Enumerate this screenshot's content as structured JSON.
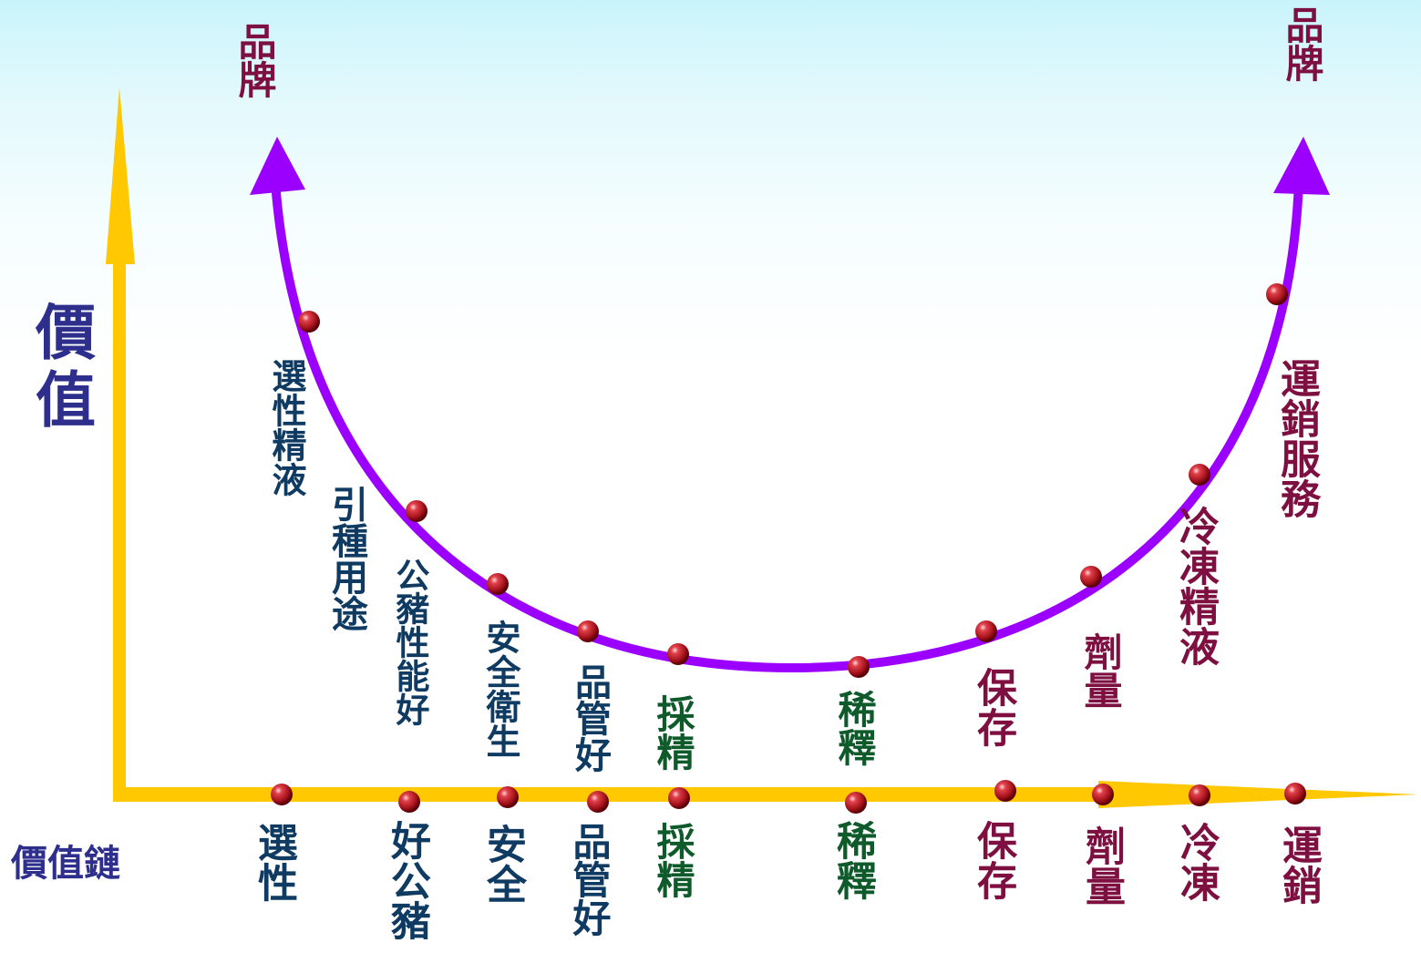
{
  "axes": {
    "y_label": "價值",
    "x_label": "價值鏈"
  },
  "brand_labels": {
    "left": "品牌",
    "right": "品牌"
  },
  "curve_labels": [
    {
      "id": "select-semen",
      "text": "選性精液",
      "color": "#0f3a62"
    },
    {
      "id": "breed-use",
      "text": "引種用途",
      "color": "#0f3a62"
    },
    {
      "id": "boar-performance",
      "text": "公豬性能好",
      "color": "#0f3a62"
    },
    {
      "id": "safety-hygiene",
      "text": "安全衛生",
      "color": "#0f3a62"
    },
    {
      "id": "quality-control",
      "text": "品管好",
      "color": "#0f3a62"
    },
    {
      "id": "collection",
      "text": "採精",
      "color": "#0e5a2a"
    },
    {
      "id": "dilution",
      "text": "稀釋",
      "color": "#0e5a2a"
    },
    {
      "id": "storage",
      "text": "保存",
      "color": "#7d1040"
    },
    {
      "id": "dosage",
      "text": "劑量",
      "color": "#7d1040"
    },
    {
      "id": "frozen-semen",
      "text": "冷凍精液",
      "color": "#7d1040"
    },
    {
      "id": "logistics-service",
      "text": "運銷服務",
      "color": "#7d1040"
    }
  ],
  "chain_labels": [
    {
      "id": "select",
      "text": "選性",
      "color": "#0f3a62"
    },
    {
      "id": "good-boar",
      "text": "好公豬",
      "color": "#0f3a62"
    },
    {
      "id": "safety",
      "text": "安全",
      "color": "#0f3a62"
    },
    {
      "id": "quality",
      "text": "品管好",
      "color": "#0f3a62"
    },
    {
      "id": "collection",
      "text": "採精",
      "color": "#0e5a2a"
    },
    {
      "id": "dilution",
      "text": "稀釋",
      "color": "#0e5a2a"
    },
    {
      "id": "storage",
      "text": "保存",
      "color": "#7d1040"
    },
    {
      "id": "dosage",
      "text": "劑量",
      "color": "#7d1040"
    },
    {
      "id": "frozen",
      "text": "冷凍",
      "color": "#7d1040"
    },
    {
      "id": "logistics",
      "text": "運銷",
      "color": "#7d1040"
    }
  ],
  "colors": {
    "axis": "#ffc800",
    "curve": "#9b00ff",
    "dot": "#b01020",
    "y_label": "#2e2e8c",
    "brand": "#7d1040"
  }
}
